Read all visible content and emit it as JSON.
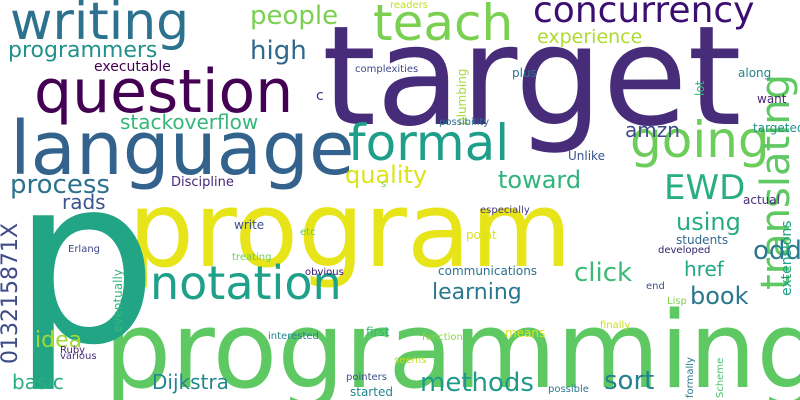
{
  "cloud": {
    "words": [
      {
        "text": "target",
        "color": "#472c7a"
      },
      {
        "text": "program",
        "color": "#e7e419"
      },
      {
        "text": "programming",
        "color": "#5ec962"
      },
      {
        "text": "p",
        "color": "#21a585"
      },
      {
        "text": "language",
        "color": "#33638d"
      },
      {
        "text": "question",
        "color": "#440154"
      },
      {
        "text": "writing",
        "color": "#2c728e"
      },
      {
        "text": "teach",
        "color": "#7ad151"
      },
      {
        "text": "concurrency",
        "color": "#3b0f70"
      },
      {
        "text": "formal",
        "color": "#1f9e89"
      },
      {
        "text": "going",
        "color": "#6ccd5a"
      },
      {
        "text": "notation",
        "color": "#1fa088"
      },
      {
        "text": "translating",
        "color": "#5ec962"
      },
      {
        "text": "process",
        "color": "#2c728e"
      },
      {
        "text": "people",
        "color": "#7ad151"
      },
      {
        "text": "programmers",
        "color": "#21918c"
      },
      {
        "text": "experience",
        "color": "#addc30"
      },
      {
        "text": "high",
        "color": "#31688e"
      },
      {
        "text": "executable",
        "color": "#440154"
      },
      {
        "text": "stackoverflow",
        "color": "#35b779"
      },
      {
        "text": "quality",
        "color": "#dde318"
      },
      {
        "text": "toward",
        "color": "#2fb47c"
      },
      {
        "text": "EWD",
        "color": "#29af7f"
      },
      {
        "text": "amzn",
        "color": "#3e4a89"
      },
      {
        "text": "Discipline",
        "color": "#482878"
      },
      {
        "text": "rads",
        "color": "#39568c"
      },
      {
        "text": "using",
        "color": "#26ad81"
      },
      {
        "text": "odd",
        "color": "#2a788e"
      },
      {
        "text": "href",
        "color": "#22a884"
      },
      {
        "text": "learning",
        "color": "#2a788e"
      },
      {
        "text": "click",
        "color": "#3bbb75"
      },
      {
        "text": "book",
        "color": "#2a788e"
      },
      {
        "text": "idea",
        "color": "#a2da37"
      },
      {
        "text": "basic",
        "color": "#28ae80"
      },
      {
        "text": "Dijkstra",
        "color": "#24878e"
      },
      {
        "text": "methods",
        "color": "#1f9a8a"
      },
      {
        "text": "sort",
        "color": "#26828e"
      },
      {
        "text": "013215871X",
        "color": "#3e4c8a"
      },
      {
        "text": "readers",
        "color": "#bddf26"
      },
      {
        "text": "complexities",
        "color": "#3e4a89"
      },
      {
        "text": "plus",
        "color": "#2a768e"
      },
      {
        "text": "along",
        "color": "#25848e"
      },
      {
        "text": "lot",
        "color": "#35b779"
      },
      {
        "text": "want",
        "color": "#482475"
      },
      {
        "text": "targeted",
        "color": "#21918c"
      },
      {
        "text": "plumbing",
        "color": "#a5db36"
      },
      {
        "text": "possibility",
        "color": "#2c718e"
      },
      {
        "text": "Unlike",
        "color": "#3a538b"
      },
      {
        "text": "actual",
        "color": "#472c7a"
      },
      {
        "text": "especially",
        "color": "#443983"
      },
      {
        "text": "write",
        "color": "#3c4f8a"
      },
      {
        "text": "etc",
        "color": "#5ec962"
      },
      {
        "text": "point",
        "color": "#dde318"
      },
      {
        "text": "students",
        "color": "#31688e"
      },
      {
        "text": "developed",
        "color": "#2d1e6e"
      },
      {
        "text": "Erlang",
        "color": "#3f4788"
      },
      {
        "text": "eventually",
        "color": "#35b779"
      },
      {
        "text": "treating",
        "color": "#6ccd5a"
      },
      {
        "text": "obvious",
        "color": "#3b0f70"
      },
      {
        "text": "communications",
        "color": "#2c728e"
      },
      {
        "text": "end",
        "color": "#39568c"
      },
      {
        "text": "extensions",
        "color": "#1fa088"
      },
      {
        "text": "Lisp",
        "color": "#7fd34e"
      },
      {
        "text": "finally",
        "color": "#c8e020"
      },
      {
        "text": "first",
        "color": "#35b779"
      },
      {
        "text": "means",
        "color": "#dde318"
      },
      {
        "text": "function",
        "color": "#8ed645"
      },
      {
        "text": "interested",
        "color": "#26828e"
      },
      {
        "text": "seems",
        "color": "#bddf26"
      },
      {
        "text": "Ruby",
        "color": "#482475"
      },
      {
        "text": "various",
        "color": "#46307e"
      },
      {
        "text": "pointers",
        "color": "#3b528b"
      },
      {
        "text": "started",
        "color": "#24878e"
      },
      {
        "text": "possible",
        "color": "#2a788e"
      },
      {
        "text": "formally",
        "color": "#2a788e"
      },
      {
        "text": "Scheme",
        "color": "#48c16e"
      },
      {
        "text": "s",
        "color": "#7ad151"
      },
      {
        "text": "c",
        "color": "#46307e"
      }
    ]
  }
}
